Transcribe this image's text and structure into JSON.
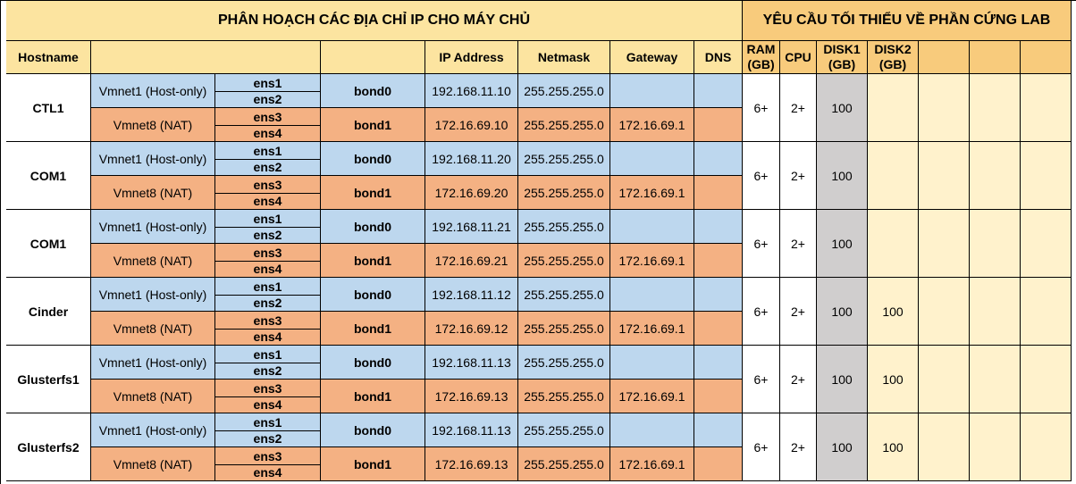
{
  "title_left": "PHÂN HOẠCH CÁC ĐỊA CHỈ IP CHO MÁY CHỦ",
  "title_right": "YÊU CẦU TỐI THIỂU VỀ PHẦN CỨNG LAB",
  "headers": {
    "hostname": "Hostname",
    "ip": "IP Address",
    "netmask": "Netmask",
    "gateway": "Gateway",
    "dns": "DNS",
    "ram": "RAM (GB)",
    "cpu": "CPU",
    "disk1": "DISK1 (GB)",
    "disk2": "DISK2 (GB)"
  },
  "hosts": [
    {
      "hostname": "CTL1",
      "vm1": "Vmnet1 (Host-only)",
      "vm2": "Vmnet8 (NAT)",
      "e1": "ens1",
      "e2": "ens2",
      "e3": "ens3",
      "e4": "ens4",
      "bond0": "bond0",
      "bond1": "bond1",
      "ip0": "192.168.11.10",
      "ip1": "172.16.69.10",
      "mask0": "255.255.255.0",
      "mask1": "255.255.255.0",
      "gw1": "172.16.69.1",
      "ram": "6+",
      "cpu": "2+",
      "disk1": "100",
      "disk2": ""
    },
    {
      "hostname": "COM1",
      "vm1": "Vmnet1 (Host-only)",
      "vm2": "Vmnet8 (NAT)",
      "e1": "ens1",
      "e2": "ens2",
      "e3": "ens3",
      "e4": "ens4",
      "bond0": "bond0",
      "bond1": "bond1",
      "ip0": "192.168.11.20",
      "ip1": "172.16.69.20",
      "mask0": "255.255.255.0",
      "mask1": "255.255.255.0",
      "gw1": "172.16.69.1",
      "ram": "6+",
      "cpu": "2+",
      "disk1": "100",
      "disk2": ""
    },
    {
      "hostname": "COM1",
      "vm1": "Vmnet1 (Host-only)",
      "vm2": "Vmnet8 (NAT)",
      "e1": "ens1",
      "e2": "ens2",
      "e3": "ens3",
      "e4": "ens4",
      "bond0": "bond0",
      "bond1": "bond1",
      "ip0": "192.168.11.21",
      "ip1": "172.16.69.21",
      "mask0": "255.255.255.0",
      "mask1": "255.255.255.0",
      "gw1": "172.16.69.1",
      "ram": "6+",
      "cpu": "2+",
      "disk1": "100",
      "disk2": ""
    },
    {
      "hostname": "Cinder",
      "vm1": "Vmnet1 (Host-only)",
      "vm2": "Vmnet8 (NAT)",
      "e1": "ens1",
      "e2": "ens2",
      "e3": "ens3",
      "e4": "ens4",
      "bond0": "bond0",
      "bond1": "bond1",
      "ip0": "192.168.11.12",
      "ip1": "172.16.69.12",
      "mask0": "255.255.255.0",
      "mask1": "255.255.255.0",
      "gw1": "172.16.69.1",
      "ram": "6+",
      "cpu": "2+",
      "disk1": "100",
      "disk2": "100"
    },
    {
      "hostname": "Glusterfs1",
      "vm1": "Vmnet1 (Host-only)",
      "vm2": "Vmnet8 (NAT)",
      "e1": "ens1",
      "e2": "ens2",
      "e3": "ens3",
      "e4": "ens4",
      "bond0": "bond0",
      "bond1": "bond1",
      "ip0": "192.168.11.13",
      "ip1": "172.16.69.13",
      "mask0": "255.255.255.0",
      "mask1": "255.255.255.0",
      "gw1": "172.16.69.1",
      "ram": "6+",
      "cpu": "2+",
      "disk1": "100",
      "disk2": "100"
    },
    {
      "hostname": "Glusterfs2",
      "vm1": "Vmnet1 (Host-only)",
      "vm2": "Vmnet8 (NAT)",
      "e1": "ens1",
      "e2": "ens2",
      "e3": "ens3",
      "e4": "ens4",
      "bond0": "bond0",
      "bond1": "bond1",
      "ip0": "192.168.11.13",
      "ip1": "172.16.69.13",
      "mask0": "255.255.255.0",
      "mask1": "255.255.255.0",
      "gw1": "172.16.69.1",
      "ram": "6+",
      "cpu": "2+",
      "disk1": "100",
      "disk2": "100"
    }
  ]
}
